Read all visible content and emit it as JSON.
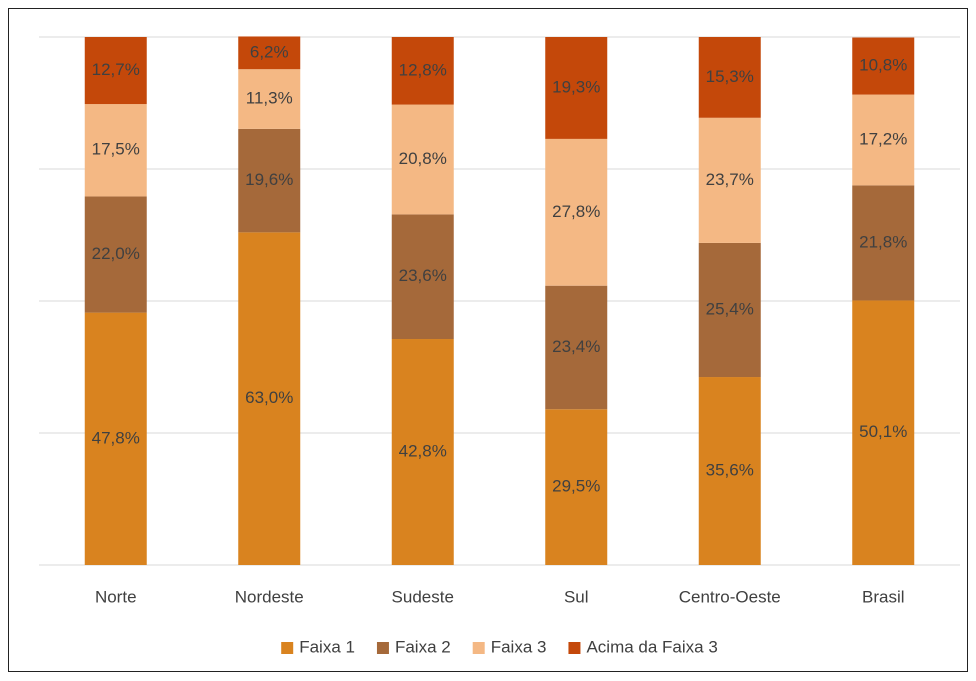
{
  "chart_data": {
    "type": "stacked_bar",
    "categories": [
      "Norte",
      "Nordeste",
      "Sudeste",
      "Sul",
      "Centro-Oeste",
      "Brasil"
    ],
    "series": [
      {
        "name": "Faixa 1",
        "color": "#d9831f",
        "values": [
          47.8,
          63.0,
          42.8,
          29.5,
          35.6,
          50.1
        ],
        "value_labels": [
          "47,8%",
          "63,0%",
          "42,8%",
          "29,5%",
          "35,6%",
          "50,1%"
        ]
      },
      {
        "name": "Faixa 2",
        "color": "#a5693a",
        "values": [
          22.0,
          19.6,
          23.6,
          23.4,
          25.4,
          21.8
        ],
        "value_labels": [
          "22,0%",
          "19,6%",
          "23,6%",
          "23,4%",
          "25,4%",
          "21,8%"
        ]
      },
      {
        "name": "Faixa 3",
        "color": "#f4b884",
        "values": [
          17.5,
          11.3,
          20.8,
          27.8,
          23.7,
          17.2
        ],
        "value_labels": [
          "17,5%",
          "11,3%",
          "20,8%",
          "27,8%",
          "23,7%",
          "17,2%"
        ]
      },
      {
        "name": "Acima da Faixa 3",
        "color": "#c4480a",
        "values": [
          12.7,
          6.2,
          12.8,
          19.3,
          15.3,
          10.8
        ],
        "value_labels": [
          "12,7%",
          "6,2%",
          "12,8%",
          "19,3%",
          "15,3%",
          "10,8%"
        ]
      }
    ],
    "ylim": [
      0,
      100
    ],
    "yticks": [
      0,
      25,
      50,
      75,
      100
    ],
    "grid": true,
    "legend": "bottom"
  }
}
